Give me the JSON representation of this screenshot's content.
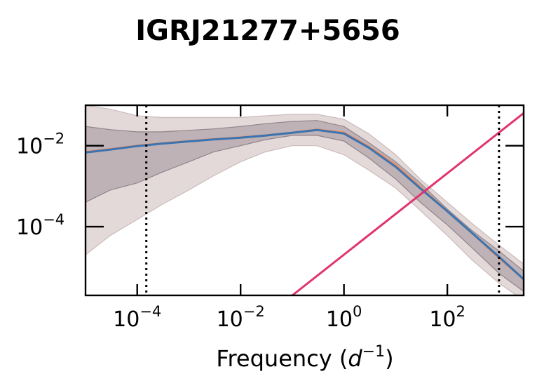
{
  "chart_data": {
    "type": "line",
    "title": "IGRJ21277+5656",
    "xlabel": "Frequency",
    "xlabel_unit_base": "d",
    "xlabel_unit_exp": "−1",
    "ylabel": "",
    "xscale": "log",
    "yscale": "log",
    "xlim": [
      1e-05,
      3000
    ],
    "ylim": [
      2e-06,
      0.1
    ],
    "xticks": [
      {
        "value": 0.0001,
        "base": "10",
        "exp": "−4"
      },
      {
        "value": 0.01,
        "base": "10",
        "exp": "−2"
      },
      {
        "value": 1,
        "base": "10",
        "exp": "0"
      },
      {
        "value": 100,
        "base": "10",
        "exp": "2"
      }
    ],
    "yticks": [
      {
        "value": 0.0001,
        "base": "10",
        "exp": "−4"
      },
      {
        "value": 0.01,
        "base": "10",
        "exp": "−2"
      }
    ],
    "vlines": [
      0.00015,
      1000
    ],
    "x": [
      1e-05,
      3e-05,
      0.0001,
      0.0003,
      0.001,
      0.003,
      0.01,
      0.03,
      0.1,
      0.3,
      1,
      3,
      10,
      30,
      100,
      300,
      1000,
      3000
    ],
    "bands": [
      {
        "name": "outer",
        "color": "#b59c9c",
        "opacity": 0.38,
        "upper": [
          0.1,
          0.08,
          0.055,
          0.05,
          0.05,
          0.05,
          0.05,
          0.055,
          0.06,
          0.06,
          0.045,
          0.02,
          0.006,
          0.0015,
          0.0004,
          0.00012,
          3.5e-05,
          1.2e-05
        ],
        "lower": [
          2e-05,
          6e-05,
          0.00015,
          0.00035,
          0.0008,
          0.0018,
          0.004,
          0.007,
          0.01,
          0.01,
          0.006,
          0.0025,
          0.0009,
          0.00025,
          6e-05,
          1.5e-05,
          4e-06,
          1.5e-06
        ]
      },
      {
        "name": "inner",
        "color": "#6a5a66",
        "opacity": 0.3,
        "upper": [
          0.03,
          0.025,
          0.022,
          0.022,
          0.024,
          0.026,
          0.03,
          0.035,
          0.04,
          0.042,
          0.03,
          0.012,
          0.004,
          0.0012,
          0.00027,
          8e-05,
          2.5e-05,
          8e-06
        ],
        "lower": [
          0.0004,
          0.0008,
          0.0012,
          0.0022,
          0.004,
          0.007,
          0.01,
          0.014,
          0.018,
          0.018,
          0.013,
          0.005,
          0.0015,
          0.0004,
          0.00011,
          3e-05,
          7e-06,
          2.5e-06
        ]
      }
    ],
    "series": [
      {
        "color": "#e8875a",
        "values": [
          0.007,
          0.0082,
          0.01,
          0.0115,
          0.013,
          0.0145,
          0.016,
          0.018,
          0.021,
          0.025,
          0.021,
          0.0095,
          0.0033,
          0.00095,
          0.00024,
          7e-05,
          1.7e-05,
          5e-06
        ]
      },
      {
        "color": "#3b74b0",
        "values": [
          0.0068,
          0.008,
          0.0098,
          0.0112,
          0.0128,
          0.0143,
          0.0158,
          0.0178,
          0.0208,
          0.0245,
          0.02,
          0.009,
          0.003,
          0.00088,
          0.00024,
          7e-05,
          1.8e-05,
          5e-06
        ]
      },
      {
        "color": "#e0346e",
        "points": [
          [
            0.1,
            2e-06
          ],
          [
            3000,
            0.064
          ]
        ]
      }
    ]
  }
}
